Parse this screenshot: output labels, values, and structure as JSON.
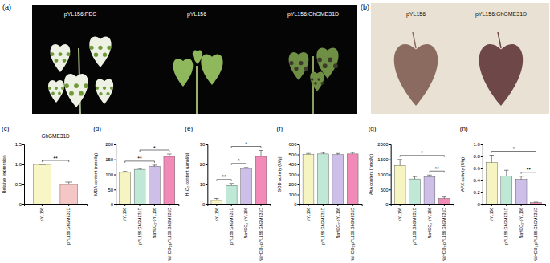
{
  "photos": [
    {
      "label": "(a)",
      "captions": [
        "pYL156:PDS",
        "pYL156",
        "pYL156:GhGME31D"
      ]
    },
    {
      "label": "(b)",
      "captions": [
        "pYL156",
        "pYL156:GhGME31D"
      ]
    }
  ],
  "chart_data": [
    {
      "type": "bar",
      "panel_label": "(c)",
      "title": "GhGME31D",
      "y_label": "Relative expression",
      "categories": [
        "pYL156",
        "pYL156:GhGME31D"
      ],
      "values": [
        1,
        0.5
      ],
      "errors": [
        0,
        0.06
      ],
      "colors": [
        "#f7f6c4",
        "#f4c6c6"
      ],
      "ylim": [
        0,
        1.5
      ],
      "yticks": [
        0,
        0.5,
        {
          "value": 1,
          "label": "1.0"
        },
        1.5
      ],
      "annotations": [
        {
          "text": "**",
          "from": 0,
          "to": 1
        }
      ]
    },
    {
      "type": "bar",
      "panel_label": "(d)",
      "y_label": "MDA content (nmol/g)",
      "categories": [
        "pYL156",
        "pYL156:GhGME31D",
        "NaHCO₃-pYL156",
        "NaHCO₃-pYL156:GhGME31D"
      ],
      "values": [
        107,
        117,
        127,
        160
      ],
      "errors": [
        3,
        3,
        4,
        8
      ],
      "colors": [
        "#f6f4c0",
        "#bfe9d6",
        "#cdbfe8",
        "#f28ab8"
      ],
      "ylim": [
        0,
        200
      ],
      "yticks": [
        0,
        50,
        100,
        150,
        200
      ],
      "annotations": [
        {
          "text": "**",
          "from": 0,
          "to": 2
        },
        {
          "text": "*",
          "from": 1,
          "to": 3
        }
      ]
    },
    {
      "type": "bar",
      "panel_label": "(e)",
      "y_label": "H₂O₂ content (μmol/g)",
      "categories": [
        "pYL156",
        "pYL156:GhGME31D",
        "NaHCO₃-pYL156",
        "NaHCO₃-pYL156:GhGME31D"
      ],
      "values": [
        2,
        9.5,
        18,
        24
      ],
      "errors": [
        1,
        1,
        0.5,
        3
      ],
      "colors": [
        "#f6f4c0",
        "#bfe9d6",
        "#cdbfe8",
        "#f28ab8"
      ],
      "ylim": [
        0,
        30
      ],
      "yticks": [
        0,
        10,
        20,
        30
      ],
      "annotations": [
        {
          "text": "**",
          "from": 0,
          "to": 1
        },
        {
          "text": "*",
          "from": 1,
          "to": 2
        },
        {
          "text": "*",
          "from": 1,
          "to": 3
        }
      ]
    },
    {
      "type": "bar",
      "panel_label": "(f)",
      "y_label": "SOD activity (U/g)",
      "categories": [
        "pYL156",
        "pYL156:GhGME31D",
        "NaHCO₃-pYL156",
        "NaHCO₃-pYL156:GhGME31D"
      ],
      "values": [
        500,
        505,
        498,
        505
      ],
      "errors": [
        10,
        15,
        12,
        15
      ],
      "colors": [
        "#f6f4c0",
        "#bfe9d6",
        "#cdbfe8",
        "#f28ab8"
      ],
      "ylim": [
        0,
        600
      ],
      "yticks": [
        0,
        100,
        200,
        300,
        400,
        500,
        600
      ]
    },
    {
      "type": "bar",
      "panel_label": "(g)",
      "y_label": "AsA content (nmol/g)",
      "categories": [
        "pYL156",
        "pYL156:GhGME31D",
        "NaHCO₃-pYL156",
        "NaHCO₃-pYL156:GhGME31D"
      ],
      "values": [
        1300,
        850,
        920,
        200
      ],
      "errors": [
        200,
        80,
        60,
        50
      ],
      "colors": [
        "#f6f4c0",
        "#bfe9d6",
        "#cdbfe8",
        "#f28ab8"
      ],
      "ylim": [
        0,
        2000
      ],
      "yticks": [
        0,
        500,
        1000,
        1500,
        2000
      ],
      "annotations": [
        {
          "text": "**",
          "from": 2,
          "to": 3
        },
        {
          "text": "*",
          "from": 0,
          "to": 3
        }
      ]
    },
    {
      "type": "bar",
      "panel_label": "(h)",
      "y_label": "APX activity (U/g)",
      "categories": [
        "pYL156",
        "pYL156:GhGME31D",
        "NaHCO₃-pYL156",
        "NaHCO₃-pYL156:GhGME31D"
      ],
      "values": [
        0.7,
        0.47,
        0.42,
        0.03
      ],
      "errors": [
        0.12,
        0.1,
        0.05,
        0.01
      ],
      "colors": [
        "#f6f4c0",
        "#bfe9d6",
        "#cdbfe8",
        "#f28ab8"
      ],
      "ylim": [
        0,
        1
      ],
      "yticks": [
        0,
        0.2,
        0.4,
        0.6,
        0.8,
        {
          "value": 1,
          "label": "1.0"
        }
      ],
      "annotations": [
        {
          "text": "**",
          "from": 2,
          "to": 3
        },
        {
          "text": "*",
          "from": 0,
          "to": 3
        }
      ]
    }
  ]
}
